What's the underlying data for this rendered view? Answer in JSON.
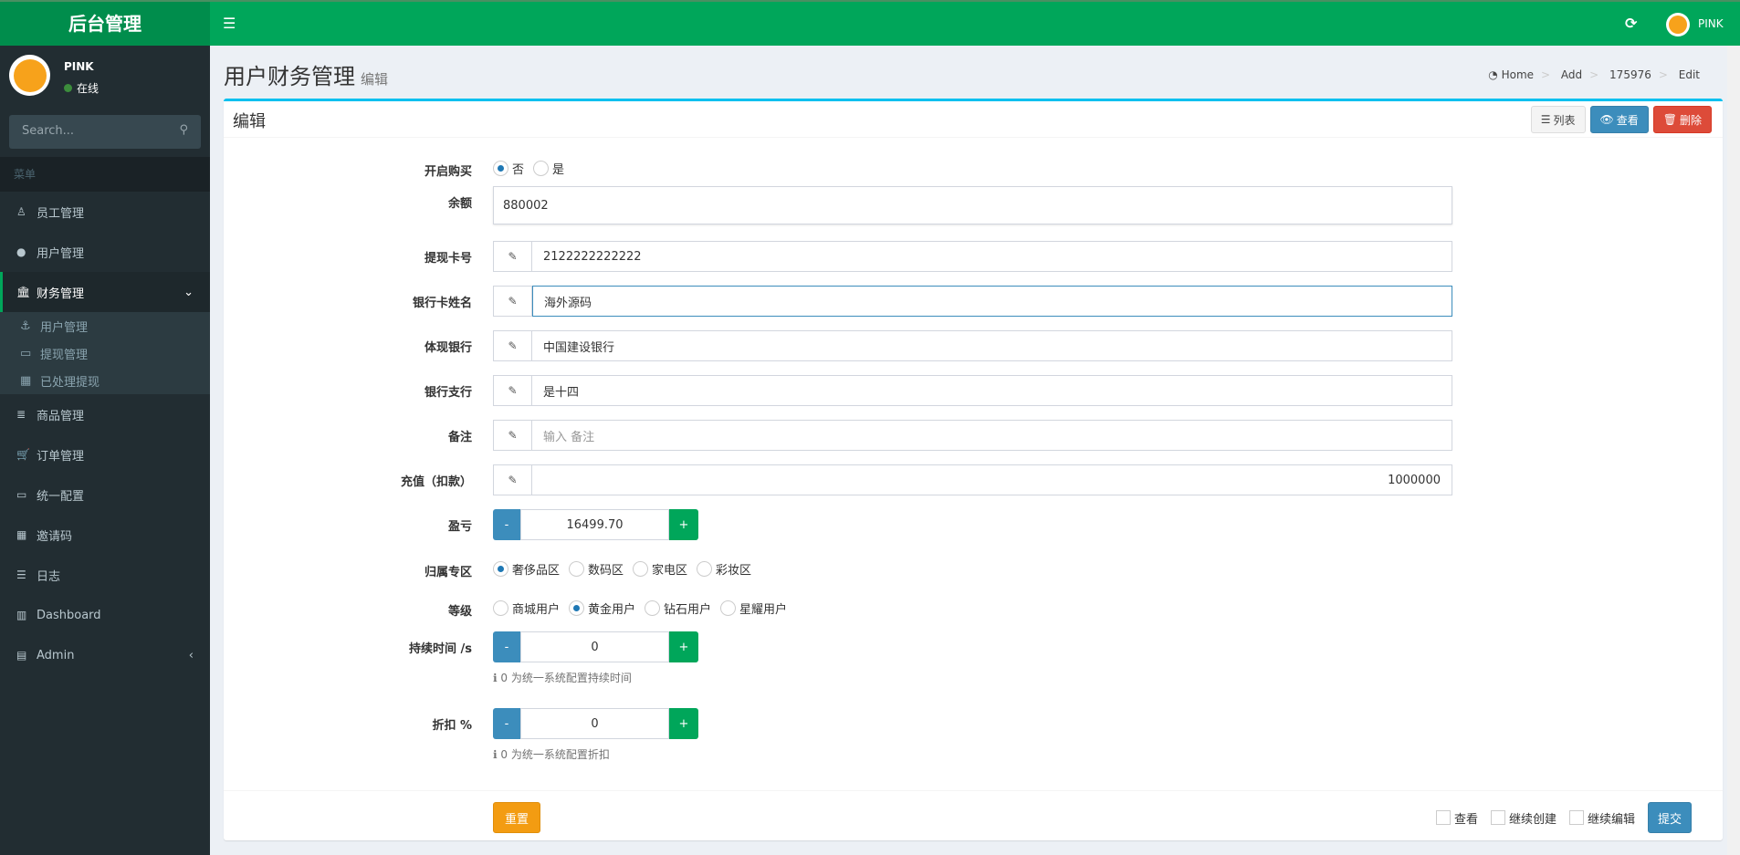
{
  "app": {
    "logo": "后台管理",
    "user": "PINK"
  },
  "sidebar": {
    "user": "PINK",
    "status": "在线",
    "search_placeholder": "Search...",
    "header": "菜单",
    "items": [
      {
        "label": "员工管理",
        "icon": "user-tie-icon"
      },
      {
        "label": "用户管理",
        "icon": "user-icon"
      },
      {
        "label": "财务管理",
        "icon": "bank-icon"
      }
    ],
    "sub": [
      {
        "label": "用户管理",
        "icon": "anchor-icon"
      },
      {
        "label": "提现管理",
        "icon": "credit-card-icon"
      },
      {
        "label": "已处理提现",
        "icon": "building-icon"
      }
    ],
    "items2": [
      {
        "label": "商品管理",
        "icon": "database-icon"
      },
      {
        "label": "订单管理",
        "icon": "cart-icon"
      },
      {
        "label": "统一配置",
        "icon": "desktop-icon"
      },
      {
        "label": "邀请码",
        "icon": "building-icon"
      },
      {
        "label": "日志",
        "icon": "list-icon"
      },
      {
        "label": "Dashboard",
        "icon": "bar-chart-icon"
      },
      {
        "label": "Admin",
        "icon": "server-icon"
      }
    ]
  },
  "page": {
    "title": "用户财务管理",
    "subtitle": "编辑",
    "breadcrumb": [
      "Home",
      "Add",
      "175976",
      "Edit"
    ]
  },
  "box": {
    "title": "编辑",
    "list": "列表",
    "view": "查看",
    "delete": "删除"
  },
  "form": {
    "buy": {
      "label": "开启购买",
      "options": [
        "否",
        "是"
      ],
      "selected": "否"
    },
    "balance": {
      "label": "余额",
      "value": "880002"
    },
    "card": {
      "label": "提现卡号",
      "value": "2122222222222"
    },
    "name": {
      "label": "银行卡姓名",
      "value": "海外源码"
    },
    "bank": {
      "label": "体现银行",
      "value": "中国建设银行"
    },
    "branch": {
      "label": "银行支行",
      "value": "是十四"
    },
    "remark": {
      "label": "备注",
      "placeholder": "输入 备注"
    },
    "recharge": {
      "label": "充值（扣款）",
      "value": "1000000"
    },
    "profit": {
      "label": "盈亏",
      "value": "16499.70"
    },
    "zone": {
      "label": "归属专区",
      "options": [
        "奢侈品区",
        "数码区",
        "家电区",
        "彩妆区"
      ],
      "selected": "奢侈品区"
    },
    "level": {
      "label": "等级",
      "options": [
        "商城用户",
        "黄金用户",
        "钻石用户",
        "星耀用户"
      ],
      "selected": "黄金用户"
    },
    "duration": {
      "label": "持续时间 /s",
      "value": "0",
      "help": "0 为统一系统配置持续时间"
    },
    "discount": {
      "label": "折扣 %",
      "value": "0",
      "help": "0 为统一系统配置折扣"
    }
  },
  "footer": {
    "reset": "重置",
    "checks": [
      "查看",
      "继续创建",
      "继续编辑"
    ],
    "submit": "提交"
  },
  "colors": {
    "primary": "#00a65a",
    "blue": "#3c8dbc",
    "red": "#dd4b39",
    "orange": "#f39c12"
  }
}
